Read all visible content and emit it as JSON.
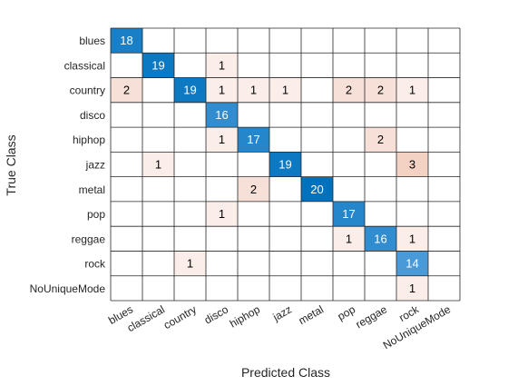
{
  "chart_data": {
    "type": "heatmap",
    "title": "",
    "xlabel": "Predicted Class",
    "ylabel": "True Class",
    "row_labels": [
      "blues",
      "classical",
      "country",
      "disco",
      "hiphop",
      "jazz",
      "metal",
      "pop",
      "reggae",
      "rock",
      "NoUniqueMode"
    ],
    "col_labels": [
      "blues",
      "classical",
      "country",
      "disco",
      "hiphop",
      "jazz",
      "metal",
      "pop",
      "reggae",
      "rock",
      "NoUniqueMode"
    ],
    "values": [
      [
        18,
        0,
        0,
        0,
        0,
        0,
        0,
        0,
        0,
        0,
        0
      ],
      [
        0,
        19,
        0,
        1,
        0,
        0,
        0,
        0,
        0,
        0,
        0
      ],
      [
        2,
        0,
        19,
        1,
        1,
        1,
        0,
        2,
        2,
        1,
        0
      ],
      [
        0,
        0,
        0,
        16,
        0,
        0,
        0,
        0,
        0,
        0,
        0
      ],
      [
        0,
        0,
        0,
        1,
        17,
        0,
        0,
        0,
        2,
        0,
        0
      ],
      [
        0,
        1,
        0,
        0,
        0,
        19,
        0,
        0,
        0,
        3,
        0
      ],
      [
        0,
        0,
        0,
        0,
        2,
        0,
        20,
        0,
        0,
        0,
        0
      ],
      [
        0,
        0,
        0,
        1,
        0,
        0,
        0,
        17,
        0,
        0,
        0
      ],
      [
        0,
        0,
        0,
        0,
        0,
        0,
        0,
        1,
        16,
        1,
        0
      ],
      [
        0,
        0,
        1,
        0,
        0,
        0,
        0,
        0,
        0,
        14,
        0
      ],
      [
        0,
        0,
        0,
        0,
        0,
        0,
        0,
        0,
        0,
        1,
        0
      ]
    ],
    "colors": {
      "diagonal_high": "#0072bd",
      "diagonal_low": "#4a9ad8",
      "off_diagonal_low": "#fbeee9",
      "off_diagonal_high": "#f3d2c4",
      "grid": "#262626",
      "text_dark": "#000000",
      "text_light": "#ffffff"
    }
  }
}
